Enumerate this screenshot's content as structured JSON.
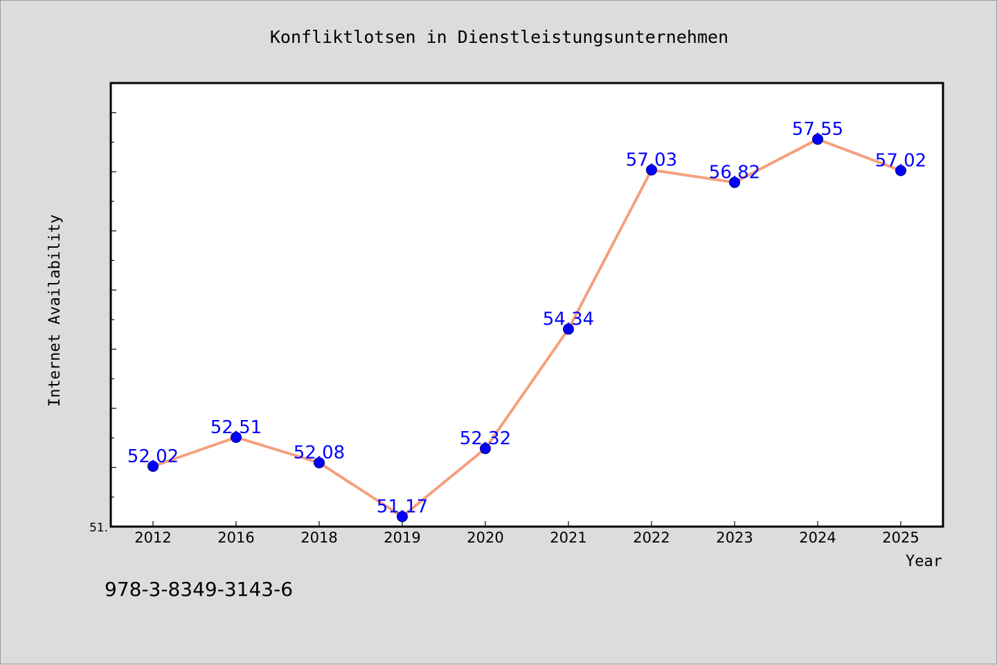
{
  "chart_data": {
    "type": "line",
    "title": "Konfliktlotsen in Dienstleistungsunternehmen",
    "xlabel": "Year",
    "ylabel": "Internet Availability",
    "categories": [
      "2012",
      "2016",
      "2018",
      "2019",
      "2020",
      "2021",
      "2022",
      "2023",
      "2024",
      "2025"
    ],
    "series": [
      {
        "values": [
          52.02,
          52.51,
          52.08,
          51.17,
          52.32,
          54.34,
          57.03,
          56.82,
          57.55,
          57.02
        ],
        "data_labels": [
          "52.02",
          "52.51",
          "52.08",
          "51.17",
          "52.32",
          "54.34",
          "57.03",
          "56.82",
          "57.55",
          "57.02"
        ],
        "line_color": "#f4a07c",
        "marker_color": "#0000ff",
        "label_color": "#0000ff"
      }
    ],
    "ylim": [
      51.0,
      58.5
    ],
    "y_tick_labels": [
      "51."
    ],
    "grid": false,
    "legend": "none",
    "plot_background": "#ffffff",
    "figure_background": "#dcdcdc"
  },
  "footer": {
    "isbn": "978-3-8349-3143-6"
  }
}
